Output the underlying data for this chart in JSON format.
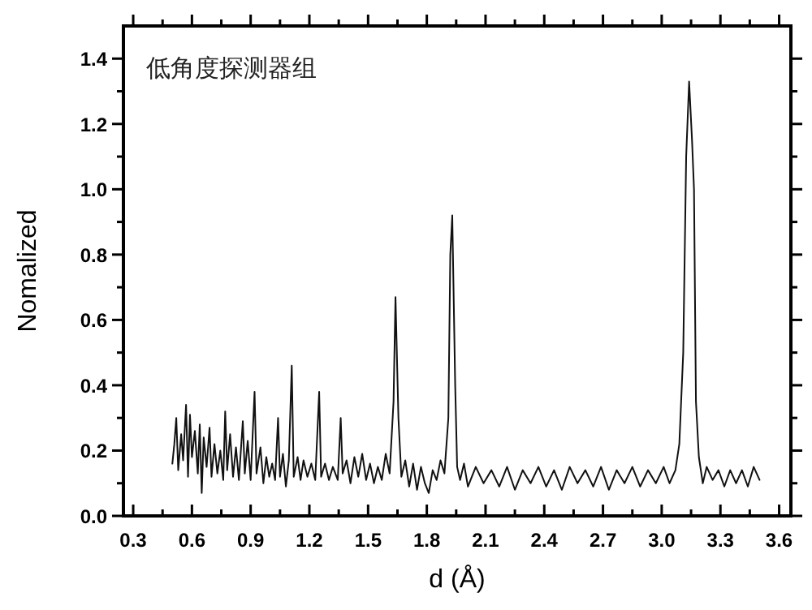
{
  "chart_data": {
    "type": "line",
    "xlabel": "d (Å)",
    "ylabel": "Nomalized",
    "annotations": [
      "低角度探测器组"
    ],
    "xlim": [
      0.25,
      3.66
    ],
    "ylim": [
      0,
      1.5
    ],
    "xticks": [
      {
        "value": 0.3,
        "label": "0.3"
      },
      {
        "value": 0.45,
        "label": null
      },
      {
        "value": 0.6,
        "label": "0.6"
      },
      {
        "value": 0.75,
        "label": null
      },
      {
        "value": 0.9,
        "label": "0.9"
      },
      {
        "value": 1.05,
        "label": null
      },
      {
        "value": 1.2,
        "label": "1.2"
      },
      {
        "value": 1.35,
        "label": null
      },
      {
        "value": 1.5,
        "label": "1.5"
      },
      {
        "value": 1.65,
        "label": null
      },
      {
        "value": 1.8,
        "label": "1.8"
      },
      {
        "value": 1.95,
        "label": null
      },
      {
        "value": 2.1,
        "label": "2.1"
      },
      {
        "value": 2.25,
        "label": null
      },
      {
        "value": 2.4,
        "label": "2.4"
      },
      {
        "value": 2.55,
        "label": null
      },
      {
        "value": 2.7,
        "label": "2.7"
      },
      {
        "value": 2.85,
        "label": null
      },
      {
        "value": 3.0,
        "label": "3.0"
      },
      {
        "value": 3.15,
        "label": null
      },
      {
        "value": 3.3,
        "label": "3.3"
      },
      {
        "value": 3.45,
        "label": null
      },
      {
        "value": 3.6,
        "label": "3.6"
      }
    ],
    "yticks": [
      {
        "value": 0,
        "label": "0.0"
      },
      {
        "value": 0.1,
        "label": null
      },
      {
        "value": 0.2,
        "label": "0.2"
      },
      {
        "value": 0.3,
        "label": null
      },
      {
        "value": 0.4,
        "label": "0.4"
      },
      {
        "value": 0.5,
        "label": null
      },
      {
        "value": 0.6,
        "label": "0.6"
      },
      {
        "value": 0.7,
        "label": null
      },
      {
        "value": 0.8,
        "label": "0.8"
      },
      {
        "value": 0.9,
        "label": null
      },
      {
        "value": 1.0,
        "label": "1.0"
      },
      {
        "value": 1.1,
        "label": null
      },
      {
        "value": 1.2,
        "label": "1.2"
      },
      {
        "value": 1.3,
        "label": null
      },
      {
        "value": 1.4,
        "label": "1.4"
      }
    ],
    "grid": false,
    "marker": "none",
    "line_style": "solid",
    "series": [
      {
        "color": "#111111",
        "x": [
          0.5,
          0.51,
          0.52,
          0.53,
          0.545,
          0.555,
          0.57,
          0.58,
          0.59,
          0.6,
          0.615,
          0.63,
          0.64,
          0.65,
          0.66,
          0.675,
          0.69,
          0.7,
          0.715,
          0.73,
          0.745,
          0.76,
          0.77,
          0.78,
          0.795,
          0.81,
          0.825,
          0.84,
          0.86,
          0.87,
          0.885,
          0.9,
          0.92,
          0.93,
          0.95,
          0.965,
          0.98,
          0.995,
          1.01,
          1.025,
          1.04,
          1.05,
          1.065,
          1.08,
          1.095,
          1.11,
          1.12,
          1.14,
          1.155,
          1.17,
          1.19,
          1.21,
          1.23,
          1.25,
          1.26,
          1.28,
          1.3,
          1.32,
          1.345,
          1.36,
          1.37,
          1.39,
          1.41,
          1.43,
          1.45,
          1.47,
          1.49,
          1.51,
          1.53,
          1.55,
          1.57,
          1.59,
          1.61,
          1.63,
          1.64,
          1.655,
          1.67,
          1.69,
          1.71,
          1.73,
          1.75,
          1.77,
          1.79,
          1.81,
          1.83,
          1.85,
          1.87,
          1.89,
          1.91,
          1.92,
          1.93,
          1.945,
          1.955,
          1.97,
          1.99,
          2.01,
          2.05,
          2.09,
          2.13,
          2.17,
          2.21,
          2.25,
          2.29,
          2.33,
          2.37,
          2.41,
          2.45,
          2.49,
          2.53,
          2.57,
          2.61,
          2.65,
          2.69,
          2.73,
          2.77,
          2.81,
          2.85,
          2.89,
          2.93,
          2.97,
          3.01,
          3.04,
          3.07,
          3.09,
          3.11,
          3.125,
          3.14,
          3.155,
          3.165,
          3.175,
          3.19,
          3.21,
          3.23,
          3.26,
          3.29,
          3.32,
          3.35,
          3.38,
          3.41,
          3.44,
          3.47,
          3.5
        ],
        "values": [
          0.16,
          0.22,
          0.3,
          0.14,
          0.25,
          0.17,
          0.34,
          0.12,
          0.31,
          0.18,
          0.26,
          0.13,
          0.28,
          0.07,
          0.24,
          0.15,
          0.27,
          0.12,
          0.22,
          0.13,
          0.2,
          0.11,
          0.32,
          0.14,
          0.25,
          0.12,
          0.21,
          0.11,
          0.29,
          0.13,
          0.23,
          0.11,
          0.38,
          0.13,
          0.21,
          0.1,
          0.18,
          0.12,
          0.16,
          0.11,
          0.3,
          0.12,
          0.19,
          0.09,
          0.17,
          0.46,
          0.12,
          0.18,
          0.11,
          0.17,
          0.12,
          0.16,
          0.11,
          0.38,
          0.12,
          0.16,
          0.11,
          0.15,
          0.11,
          0.3,
          0.13,
          0.17,
          0.1,
          0.18,
          0.12,
          0.19,
          0.11,
          0.16,
          0.1,
          0.15,
          0.11,
          0.19,
          0.13,
          0.35,
          0.67,
          0.3,
          0.12,
          0.17,
          0.09,
          0.16,
          0.08,
          0.15,
          0.1,
          0.07,
          0.14,
          0.11,
          0.17,
          0.13,
          0.3,
          0.8,
          0.92,
          0.4,
          0.15,
          0.11,
          0.16,
          0.09,
          0.15,
          0.1,
          0.14,
          0.09,
          0.15,
          0.08,
          0.14,
          0.1,
          0.15,
          0.09,
          0.14,
          0.08,
          0.15,
          0.1,
          0.14,
          0.09,
          0.15,
          0.08,
          0.14,
          0.1,
          0.15,
          0.09,
          0.14,
          0.1,
          0.15,
          0.1,
          0.14,
          0.22,
          0.5,
          1.1,
          1.33,
          1.15,
          1.0,
          0.35,
          0.18,
          0.1,
          0.15,
          0.11,
          0.14,
          0.09,
          0.14,
          0.1,
          0.14,
          0.09,
          0.15,
          0.11
        ]
      }
    ]
  }
}
